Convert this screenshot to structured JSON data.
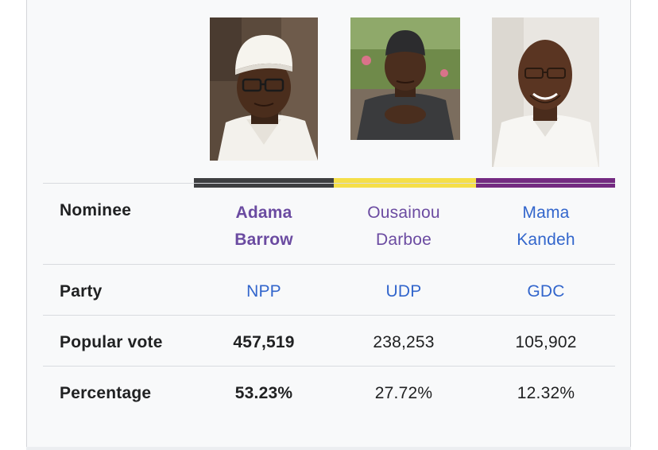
{
  "colors": {
    "npp": "#3e3f41",
    "udp": "#f5df48",
    "gdc": "#742a81",
    "link": "#3366cc",
    "visited_link": "#6b4ba1",
    "text": "#202122"
  },
  "rows": {
    "nominee_label": "Nominee",
    "party_label": "Party",
    "popular_vote_label": "Popular vote",
    "percentage_label": "Percentage"
  },
  "candidates": [
    {
      "name_line1": "Adama",
      "name_line2": "Barrow",
      "party": "NPP",
      "popular_vote": "457,519",
      "percentage": "53.23%",
      "portrait_icon": "portrait-adama-barrow"
    },
    {
      "name_line1": "Ousainou",
      "name_line2": "Darboe",
      "party": "UDP",
      "popular_vote": "238,253",
      "percentage": "27.72%",
      "portrait_icon": "portrait-ousainou-darboe"
    },
    {
      "name_line1": "Mama",
      "name_line2": "Kandeh",
      "party": "GDC",
      "popular_vote": "105,902",
      "percentage": "12.32%",
      "portrait_icon": "portrait-mama-kandeh"
    }
  ]
}
